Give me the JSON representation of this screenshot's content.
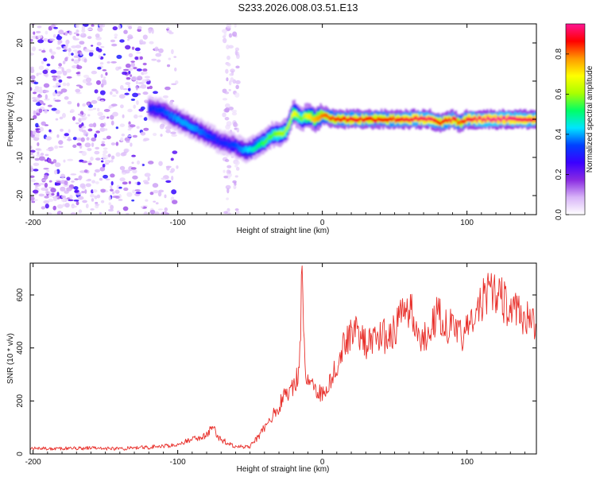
{
  "title": "S233.2026.008.03.51.E13",
  "colors": {
    "snr_line": "#e8302b",
    "background": "#ffffff",
    "axis": "#000000"
  },
  "chart_data": [
    {
      "type": "heatmap",
      "name": "spectrogram",
      "xlabel": "Height of straight line (km)",
      "ylabel": "Frequency (Hz)",
      "xlim": [
        -202,
        148
      ],
      "ylim": [
        -25,
        25
      ],
      "xticks": [
        -200,
        -100,
        0,
        100
      ],
      "yticks": [
        -20,
        -10,
        0,
        10,
        20
      ],
      "colorbar": {
        "label": "Normalized spectral amplitude",
        "range": [
          0,
          0.95
        ],
        "ticks": [
          0.0,
          0.2,
          0.4,
          0.6,
          0.8
        ],
        "tick_labels": [
          "0.0",
          "0.2",
          "0.4",
          "0.6",
          "0.8"
        ],
        "colormap": [
          "#ffffff",
          "#d8b4f8",
          "#8a2be2",
          "#3a00ff",
          "#0040ff",
          "#00e5ff",
          "#00ff66",
          "#aaff00",
          "#ffff00",
          "#ff9900",
          "#ff0000",
          "#ff1493"
        ]
      },
      "noise_region_x": [
        -202,
        -110
      ],
      "noise_column_x": [
        -68,
        -58
      ],
      "ridge": {
        "x": [
          -120,
          -110,
          -100,
          -90,
          -80,
          -70,
          -60,
          -55,
          -50,
          -45,
          -40,
          -35,
          -30,
          -25,
          -20,
          -15,
          -10,
          -5,
          0,
          10,
          20,
          40,
          60,
          75,
          80,
          90,
          95,
          100,
          120,
          148
        ],
        "freq": [
          3,
          2,
          0,
          -2,
          -4,
          -6,
          -7,
          -8,
          -8,
          -7,
          -6,
          -4,
          -4,
          -3,
          2,
          0,
          1,
          0,
          1,
          0,
          0,
          0,
          0,
          0,
          -1,
          0,
          -1,
          0,
          0,
          0
        ],
        "amplitude": [
          0.3,
          0.35,
          0.4,
          0.4,
          0.35,
          0.3,
          0.35,
          0.4,
          0.45,
          0.5,
          0.55,
          0.55,
          0.6,
          0.6,
          0.7,
          0.55,
          0.7,
          0.75,
          0.8,
          0.85,
          0.88,
          0.85,
          0.9,
          0.92,
          0.85,
          0.9,
          0.8,
          0.9,
          0.95,
          0.9
        ]
      }
    },
    {
      "type": "line",
      "name": "snr",
      "xlabel": "Height of straight line (km)",
      "ylabel": "SNR (10 * v/v)",
      "xlim": [
        -202,
        148
      ],
      "ylim": [
        0,
        720
      ],
      "xticks": [
        -200,
        -100,
        0,
        100
      ],
      "yticks": [
        0,
        200,
        400,
        600
      ],
      "series": [
        {
          "name": "SNR",
          "x": [
            -202,
            -180,
            -160,
            -140,
            -120,
            -110,
            -100,
            -90,
            -80,
            -76,
            -72,
            -60,
            -50,
            -45,
            -40,
            -35,
            -30,
            -25,
            -20,
            -16,
            -14,
            -12,
            -10,
            -5,
            0,
            5,
            10,
            15,
            20,
            25,
            30,
            35,
            40,
            45,
            50,
            55,
            60,
            65,
            70,
            75,
            80,
            85,
            90,
            95,
            100,
            105,
            110,
            115,
            120,
            125,
            130,
            135,
            140,
            148
          ],
          "y": [
            20,
            20,
            22,
            20,
            25,
            30,
            35,
            55,
            70,
            110,
            60,
            25,
            30,
            60,
            100,
            140,
            180,
            230,
            260,
            300,
            700,
            320,
            280,
            250,
            220,
            280,
            330,
            420,
            460,
            470,
            410,
            420,
            450,
            440,
            470,
            520,
            560,
            470,
            430,
            500,
            520,
            500,
            470,
            440,
            470,
            500,
            580,
            600,
            620,
            580,
            540,
            540,
            510,
            490
          ]
        }
      ]
    }
  ]
}
